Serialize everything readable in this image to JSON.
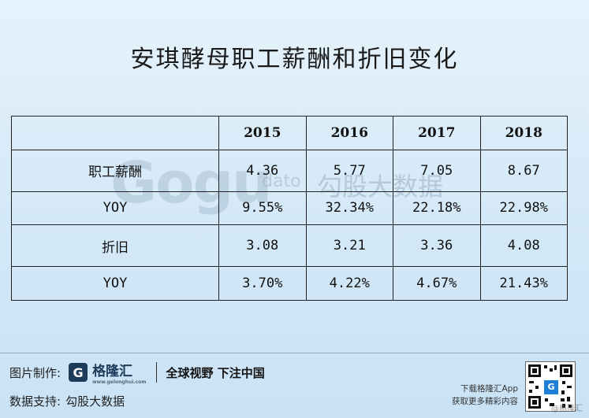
{
  "title": "安琪酵母职工薪酬和折旧变化",
  "watermark": {
    "logo": "Gogu",
    "dato": "dato",
    "cn": "勾股大数据"
  },
  "table": {
    "headers": [
      "",
      "2015",
      "2016",
      "2017",
      "2018"
    ],
    "rows": [
      [
        "职工薪酬",
        "4.36",
        "5.77",
        "7.05",
        "8.67"
      ],
      [
        "YOY",
        "9.55%",
        "32.34%",
        "22.18%",
        "22.98%"
      ],
      [
        "折旧",
        "3.08",
        "3.21",
        "3.36",
        "4.08"
      ],
      [
        "YOY",
        "3.70%",
        "4.22%",
        "4.67%",
        "21.43%"
      ]
    ]
  },
  "footer": {
    "image_label": "图片制作:",
    "brand_mark": "G",
    "brand_name": "格隆汇",
    "brand_url": "www.gelonghui.com",
    "slogan": "全球视野 下注中国",
    "data_label": "数据支持:",
    "data_source": "勾股大数据",
    "download_line": "下载格隆汇App",
    "more_line": "获取更多精彩内容",
    "qr_center": "G",
    "corner_mark": "@格隆汇"
  },
  "colors": {
    "brand": "#1c3a5a",
    "background": "#d6eaf8"
  }
}
